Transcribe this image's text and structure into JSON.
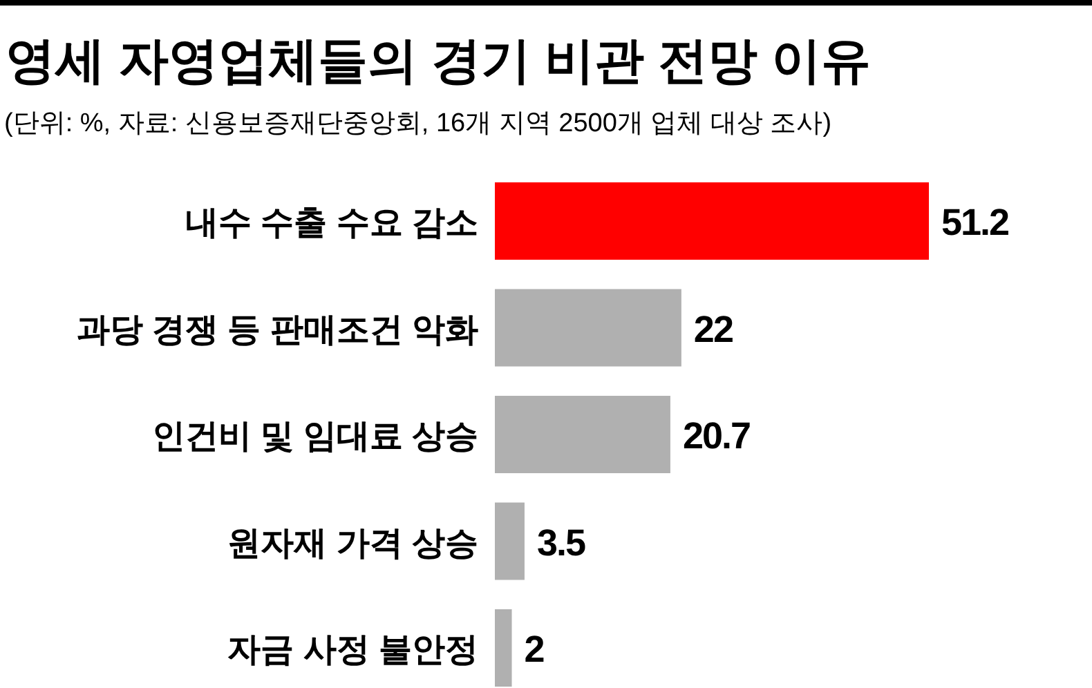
{
  "chart_data": {
    "type": "bar",
    "orientation": "horizontal",
    "title": "영세 자영업체들의 경기 비관 전망 이유",
    "subtitle": "(단위: %, 자료: 신용보증재단중앙회, 16개 지역 2500개 업체 대상 조사)",
    "categories": [
      "내수 수출 수요 감소",
      "과당 경쟁 등 판매조건 악화",
      "인건비 및 임대료 상승",
      "원자재 가격 상승",
      "자금 사정 불안정"
    ],
    "values": [
      51.2,
      22,
      20.7,
      3.5,
      2
    ],
    "colors": [
      "#ff0000",
      "#b0b0b0",
      "#b0b0b0",
      "#b0b0b0",
      "#b0b0b0"
    ],
    "data_labels": true
  }
}
